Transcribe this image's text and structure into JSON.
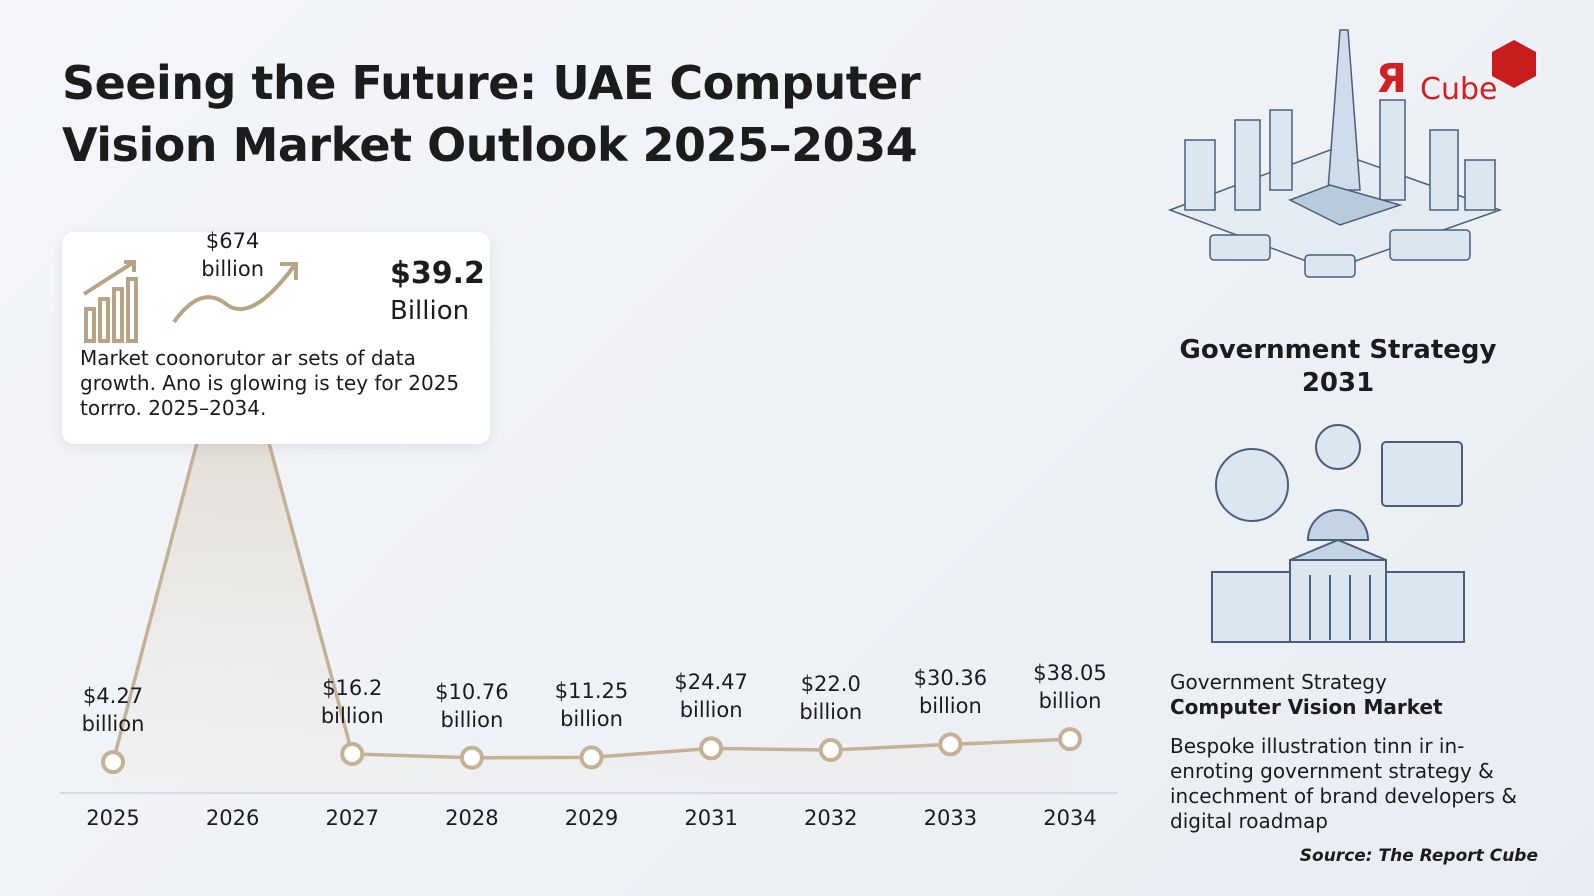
{
  "title": "Seeing the Future: UAE Computer Vision Market Outlook 2025–2034",
  "card": {
    "value": "$39.2",
    "unit": "Billion",
    "text": "Market coonorutor ar sets of data growth. Ano is glowing is tey for 2025 torrro. 2025–2034."
  },
  "chart_data": {
    "type": "line",
    "categories": [
      "2025",
      "2026",
      "2027",
      "2028",
      "2029",
      "2031",
      "2032",
      "2033",
      "2034"
    ],
    "values": [
      4.27,
      674,
      16.2,
      10.76,
      11.25,
      24.47,
      22.0,
      30.36,
      38.05
    ],
    "value_labels": [
      "$4.27 billion",
      "$674 billion",
      "$16.2 billion",
      "$10.76 billion",
      "$11.25 billion",
      "$24.47 billion",
      "$22.0 billion",
      "$30.36 billion",
      "$38.05 billion"
    ],
    "color": "#c4b196"
  },
  "logo": {
    "mark": "Я",
    "text": "Cube"
  },
  "strategy": {
    "title": "Government Strategy 2031",
    "subtitle": "Government Strategy",
    "subtitle_bold": "Computer Vision Market",
    "text": "Bespoke illustration tinn ir in-enroting government strategy & incechment of brand developers & digital roadmap"
  },
  "source": "Source: The Report Cube"
}
